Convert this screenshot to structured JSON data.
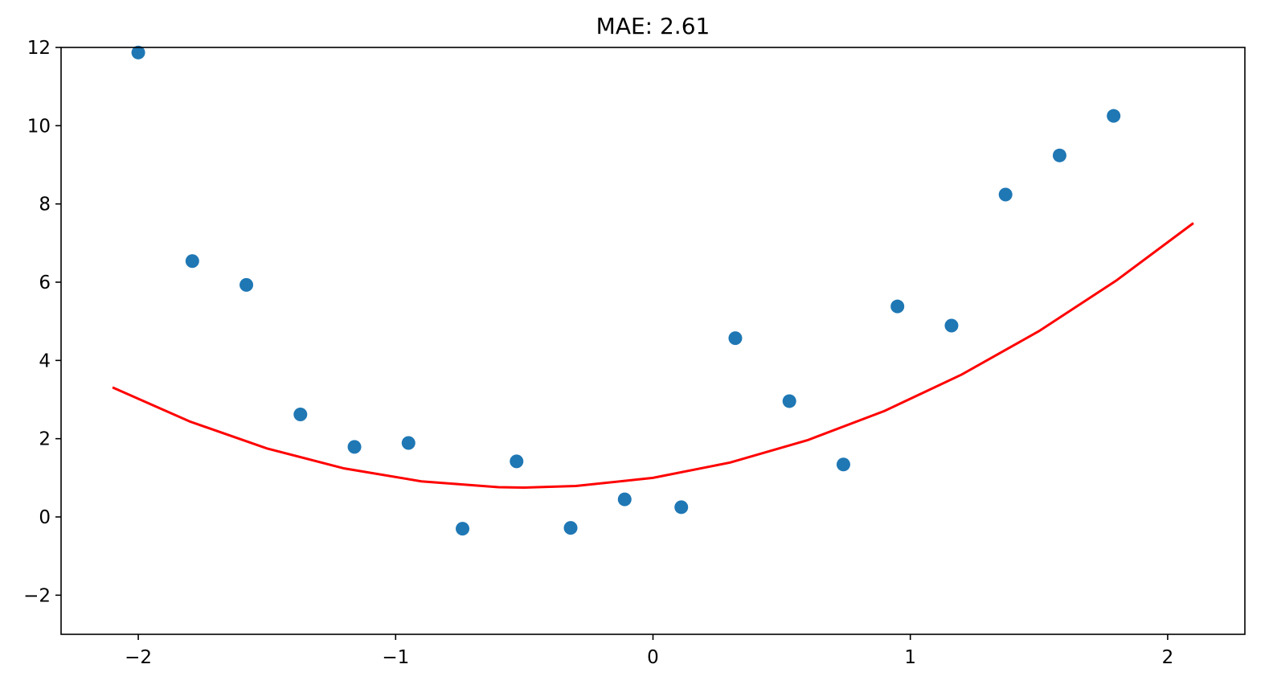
{
  "chart_data": {
    "type": "scatter",
    "title": "MAE: 2.61",
    "xlabel": "",
    "ylabel": "",
    "xlim": [
      -2.3,
      2.3
    ],
    "ylim": [
      -3,
      12
    ],
    "x_ticks": [
      -2,
      -1,
      0,
      1,
      2
    ],
    "x_tick_labels": [
      "−2",
      "−1",
      "0",
      "1",
      "2"
    ],
    "y_ticks": [
      -2,
      0,
      2,
      4,
      6,
      8,
      10,
      12
    ],
    "y_tick_labels": [
      "−2",
      "0",
      "2",
      "4",
      "6",
      "8",
      "10",
      "12"
    ],
    "grid": false,
    "series": [
      {
        "type": "scatter",
        "color": "#1f77b4",
        "points": [
          {
            "x": -2.0,
            "y": 11.87
          },
          {
            "x": -1.79,
            "y": 6.54
          },
          {
            "x": -1.58,
            "y": 5.93
          },
          {
            "x": -1.37,
            "y": 2.62
          },
          {
            "x": -1.16,
            "y": 1.79
          },
          {
            "x": -0.95,
            "y": 1.89
          },
          {
            "x": -0.74,
            "y": -0.3
          },
          {
            "x": -0.53,
            "y": 1.42
          },
          {
            "x": -0.32,
            "y": -0.28
          },
          {
            "x": -0.11,
            "y": 0.45
          },
          {
            "x": 0.11,
            "y": 0.25
          },
          {
            "x": 0.32,
            "y": 4.57
          },
          {
            "x": 0.53,
            "y": 2.96
          },
          {
            "x": 0.74,
            "y": 1.34
          },
          {
            "x": 0.95,
            "y": 5.38
          },
          {
            "x": 1.16,
            "y": 4.89
          },
          {
            "x": 1.37,
            "y": 8.24
          },
          {
            "x": 1.58,
            "y": 9.24
          },
          {
            "x": 1.79,
            "y": 10.25
          }
        ]
      },
      {
        "type": "line",
        "color": "#ff0000",
        "points": [
          {
            "x": -2.1,
            "y": 3.31
          },
          {
            "x": -1.8,
            "y": 2.44
          },
          {
            "x": -1.5,
            "y": 1.75
          },
          {
            "x": -1.2,
            "y": 1.24
          },
          {
            "x": -0.9,
            "y": 0.91
          },
          {
            "x": -0.6,
            "y": 0.76
          },
          {
            "x": -0.5,
            "y": 0.75
          },
          {
            "x": -0.3,
            "y": 0.79
          },
          {
            "x": 0.0,
            "y": 1.0
          },
          {
            "x": 0.3,
            "y": 1.39
          },
          {
            "x": 0.6,
            "y": 1.96
          },
          {
            "x": 0.9,
            "y": 2.71
          },
          {
            "x": 1.2,
            "y": 3.64
          },
          {
            "x": 1.5,
            "y": 4.75
          },
          {
            "x": 1.8,
            "y": 6.04
          },
          {
            "x": 2.1,
            "y": 7.51
          }
        ]
      }
    ]
  }
}
